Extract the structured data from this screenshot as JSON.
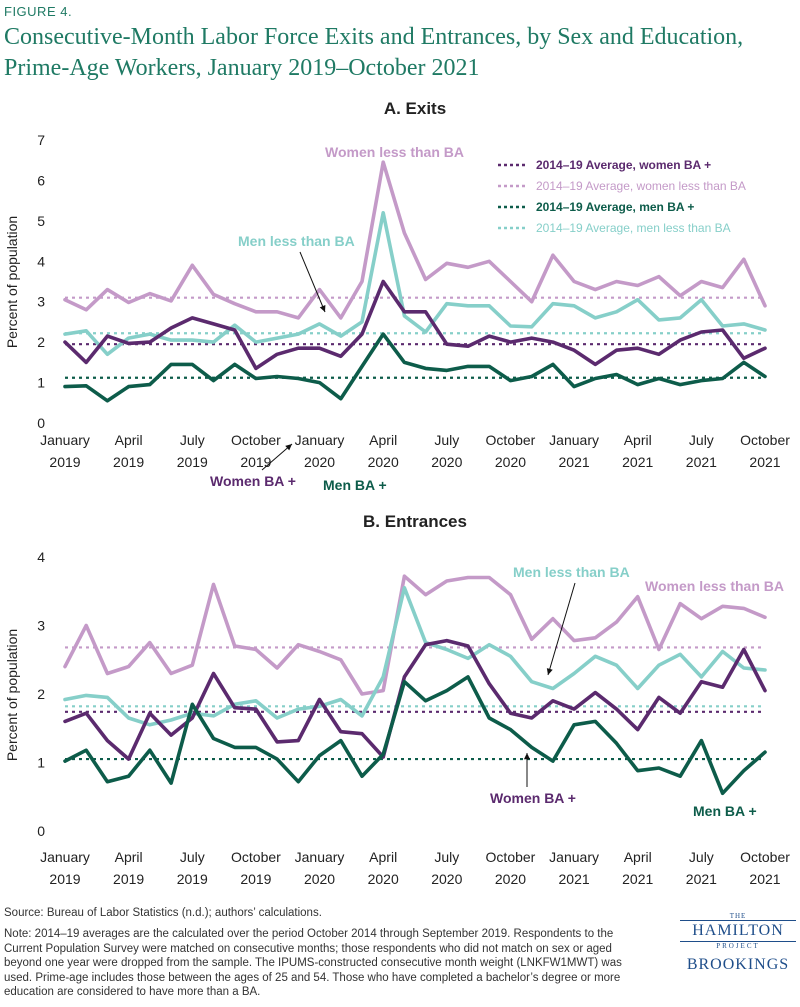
{
  "figure": {
    "label": "FIGURE 4.",
    "title": "Consecutive-Month Labor Force Exits and Entrances, by Sex and Education, Prime-Age Workers, January 2019–October 2021"
  },
  "colors": {
    "women_ba": "#5b2a6e",
    "women_less": "#c49ac8",
    "men_ba": "#0d5c4a",
    "men_less": "#86cfc9"
  },
  "chart_data": [
    {
      "type": "line",
      "title": "A. Exits",
      "ylabel": "Percent of population",
      "ylim": [
        0,
        7
      ],
      "yticks": [
        0,
        1,
        2,
        3,
        4,
        5,
        6,
        7
      ],
      "xtick_labels": [
        {
          "month": "January",
          "year": "2019",
          "index": 0
        },
        {
          "month": "April",
          "year": "2019",
          "index": 3
        },
        {
          "month": "July",
          "year": "2019",
          "index": 6
        },
        {
          "month": "October",
          "year": "2019",
          "index": 9
        },
        {
          "month": "January",
          "year": "2020",
          "index": 12
        },
        {
          "month": "April",
          "year": "2020",
          "index": 15
        },
        {
          "month": "July",
          "year": "2020",
          "index": 18
        },
        {
          "month": "October",
          "year": "2020",
          "index": 21
        },
        {
          "month": "January",
          "year": "2021",
          "index": 24
        },
        {
          "month": "April",
          "year": "2021",
          "index": 27
        },
        {
          "month": "July",
          "year": "2021",
          "index": 30
        },
        {
          "month": "October",
          "year": "2021",
          "index": 33
        }
      ],
      "series": [
        {
          "key": "women_less",
          "values": [
            3.05,
            2.8,
            3.3,
            2.98,
            3.2,
            3.02,
            3.9,
            3.18,
            2.95,
            2.75,
            2.75,
            2.6,
            3.3,
            2.6,
            3.5,
            6.45,
            4.7,
            3.55,
            3.95,
            3.85,
            4.0,
            3.5,
            3.0,
            4.15,
            3.5,
            3.3,
            3.5,
            3.4,
            3.62,
            3.15,
            3.5,
            3.35,
            4.05,
            2.9
          ]
        },
        {
          "key": "men_less",
          "values": [
            2.2,
            2.28,
            1.7,
            2.1,
            2.2,
            2.05,
            2.05,
            2.0,
            2.42,
            2.0,
            2.1,
            2.2,
            2.45,
            2.15,
            2.5,
            5.2,
            2.65,
            2.25,
            2.95,
            2.9,
            2.9,
            2.4,
            2.38,
            2.95,
            2.9,
            2.6,
            2.75,
            3.05,
            2.55,
            2.6,
            3.05,
            2.4,
            2.45,
            2.3
          ]
        },
        {
          "key": "women_ba",
          "values": [
            2.0,
            1.5,
            2.15,
            1.97,
            2.0,
            2.35,
            2.6,
            2.45,
            2.3,
            1.35,
            1.7,
            1.85,
            1.85,
            1.65,
            2.2,
            3.5,
            2.75,
            2.75,
            1.95,
            1.9,
            2.15,
            2.0,
            2.1,
            2.0,
            1.8,
            1.45,
            1.8,
            1.85,
            1.7,
            2.05,
            2.25,
            2.3,
            1.6,
            1.85
          ]
        },
        {
          "key": "men_ba",
          "values": [
            0.9,
            0.92,
            0.55,
            0.9,
            0.95,
            1.45,
            1.45,
            1.05,
            1.45,
            1.1,
            1.15,
            1.1,
            1.0,
            0.6,
            1.4,
            2.2,
            1.5,
            1.35,
            1.3,
            1.4,
            1.4,
            1.05,
            1.15,
            1.45,
            0.9,
            1.1,
            1.2,
            0.95,
            1.1,
            0.95,
            1.05,
            1.1,
            1.5,
            1.15
          ]
        }
      ],
      "averages": [
        {
          "key": "women_ba",
          "value": 1.95
        },
        {
          "key": "women_less",
          "value": 3.1
        },
        {
          "key": "men_ba",
          "value": 1.12
        },
        {
          "key": "men_less",
          "value": 2.22
        }
      ],
      "legend": {
        "placement": "top-right",
        "entries": [
          {
            "key": "women_ba",
            "label": "2014–19 Average, women BA +"
          },
          {
            "key": "women_less",
            "label": "2014–19 Average, women less than BA"
          },
          {
            "key": "men_ba",
            "label": "2014–19 Average, men BA +"
          },
          {
            "key": "men_less",
            "label": "2014–19 Average, men less than BA"
          }
        ]
      },
      "annotations": [
        {
          "key": "women_less",
          "text": "Women less than BA"
        },
        {
          "key": "men_less",
          "text": "Men less than BA"
        },
        {
          "key": "women_ba",
          "text": "Women BA +"
        },
        {
          "key": "men_ba",
          "text": "Men BA +"
        }
      ]
    },
    {
      "type": "line",
      "title": "B. Entrances",
      "ylabel": "Percent of population",
      "ylim": [
        0,
        4
      ],
      "yticks": [
        0,
        1,
        2,
        3,
        4
      ],
      "xtick_labels": [
        {
          "month": "January",
          "year": "2019",
          "index": 0
        },
        {
          "month": "April",
          "year": "2019",
          "index": 3
        },
        {
          "month": "July",
          "year": "2019",
          "index": 6
        },
        {
          "month": "October",
          "year": "2019",
          "index": 9
        },
        {
          "month": "January",
          "year": "2020",
          "index": 12
        },
        {
          "month": "April",
          "year": "2020",
          "index": 15
        },
        {
          "month": "July",
          "year": "2020",
          "index": 18
        },
        {
          "month": "October",
          "year": "2020",
          "index": 21
        },
        {
          "month": "January",
          "year": "2021",
          "index": 24
        },
        {
          "month": "April",
          "year": "2021",
          "index": 27
        },
        {
          "month": "July",
          "year": "2021",
          "index": 30
        },
        {
          "month": "October",
          "year": "2021",
          "index": 33
        }
      ],
      "series": [
        {
          "key": "women_less",
          "values": [
            2.4,
            3.0,
            2.3,
            2.4,
            2.75,
            2.3,
            2.42,
            3.6,
            2.7,
            2.65,
            2.38,
            2.72,
            2.62,
            2.5,
            2.0,
            2.05,
            3.72,
            3.45,
            3.65,
            3.7,
            3.7,
            3.45,
            2.8,
            3.1,
            2.78,
            2.82,
            3.05,
            3.42,
            2.65,
            3.32,
            3.1,
            3.28,
            3.25,
            3.12
          ]
        },
        {
          "key": "men_less",
          "values": [
            1.92,
            1.98,
            1.95,
            1.65,
            1.55,
            1.62,
            1.72,
            1.68,
            1.85,
            1.9,
            1.65,
            1.78,
            1.82,
            1.92,
            1.68,
            2.25,
            3.55,
            2.75,
            2.65,
            2.52,
            2.72,
            2.55,
            2.18,
            2.08,
            2.3,
            2.55,
            2.42,
            2.08,
            2.42,
            2.58,
            2.25,
            2.62,
            2.38,
            2.35
          ]
        },
        {
          "key": "women_ba",
          "values": [
            1.6,
            1.72,
            1.32,
            1.05,
            1.72,
            1.4,
            1.65,
            2.3,
            1.8,
            1.78,
            1.3,
            1.32,
            1.92,
            1.45,
            1.42,
            1.08,
            2.25,
            2.72,
            2.78,
            2.7,
            2.15,
            1.72,
            1.65,
            1.9,
            1.78,
            2.02,
            1.78,
            1.48,
            1.95,
            1.72,
            2.18,
            2.1,
            2.65,
            2.05
          ]
        },
        {
          "key": "men_ba",
          "values": [
            1.02,
            1.18,
            0.72,
            0.8,
            1.18,
            0.7,
            1.85,
            1.35,
            1.22,
            1.22,
            1.05,
            0.72,
            1.1,
            1.32,
            0.8,
            1.12,
            2.18,
            1.9,
            2.05,
            2.25,
            1.65,
            1.48,
            1.22,
            1.02,
            1.55,
            1.6,
            1.28,
            0.88,
            0.92,
            0.8,
            1.32,
            0.55,
            0.88,
            1.15
          ]
        }
      ],
      "averages": [
        {
          "key": "women_ba",
          "value": 1.74
        },
        {
          "key": "women_less",
          "value": 2.68
        },
        {
          "key": "men_ba",
          "value": 1.05
        },
        {
          "key": "men_less",
          "value": 1.82
        }
      ],
      "annotations": [
        {
          "key": "men_less",
          "text": "Men less than BA"
        },
        {
          "key": "women_less",
          "text": "Women less than BA"
        },
        {
          "key": "women_ba",
          "text": "Women BA +"
        },
        {
          "key": "men_ba",
          "text": "Men BA +"
        }
      ]
    }
  ],
  "footer": {
    "source": "Source:  Bureau of Labor Statistics (n.d.); authors’ calculations.",
    "note": "Note: 2014–19 averages are the calculated over the period October 2014 through September 2019. Respondents to the Current Population Survey were matched on consecutive months; those respondents who did not match on sex or aged beyond one year were dropped from the sample. The IPUMS-constructed consecutive month weight (LNKFW1MWT) was used. Prime-age includes those between the ages of 25 and 54. Those who have completed a bachelor’s degree or more education are considered to have more than a BA."
  },
  "logo": {
    "the": "THE",
    "hamilton": "HAMILTON",
    "project": "PROJECT",
    "brookings": "BROOKINGS"
  }
}
